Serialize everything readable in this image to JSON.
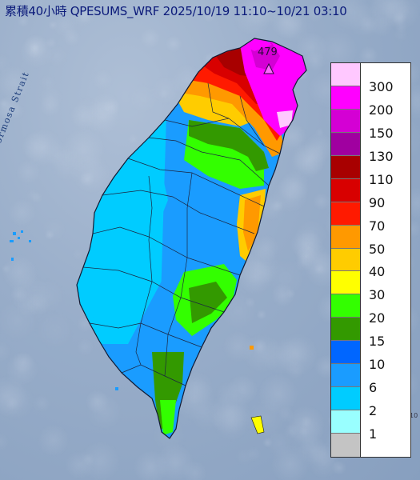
{
  "map": {
    "title": "累積40小時 QPESUMS_WRF 2025/10/19 11:10~10/21 03:10",
    "strait_label": "Formosa Strait",
    "max_value_label": "479",
    "edge_mark": "10"
  },
  "legend": {
    "title": "",
    "levels": [
      {
        "label": "300",
        "color": "#ffc8ff"
      },
      {
        "label": "200",
        "color": "#ff00ff"
      },
      {
        "label": "150",
        "color": "#d400d4"
      },
      {
        "label": "130",
        "color": "#a000a0"
      },
      {
        "label": "110",
        "color": "#a80000"
      },
      {
        "label": "90",
        "color": "#d80000"
      },
      {
        "label": "70",
        "color": "#ff1a00"
      },
      {
        "label": "50",
        "color": "#ff9900"
      },
      {
        "label": "40",
        "color": "#ffcc00"
      },
      {
        "label": "30",
        "color": "#ffff00"
      },
      {
        "label": "20",
        "color": "#33ff00"
      },
      {
        "label": "15",
        "color": "#339900"
      },
      {
        "label": "10",
        "color": "#0066ff"
      },
      {
        "label": "6",
        "color": "#1a9cff"
      },
      {
        "label": "2",
        "color": "#00ccff"
      },
      {
        "label": "1",
        "color": "#99ffff"
      },
      {
        "label": "",
        "color": "#c4c4c4"
      }
    ]
  }
}
